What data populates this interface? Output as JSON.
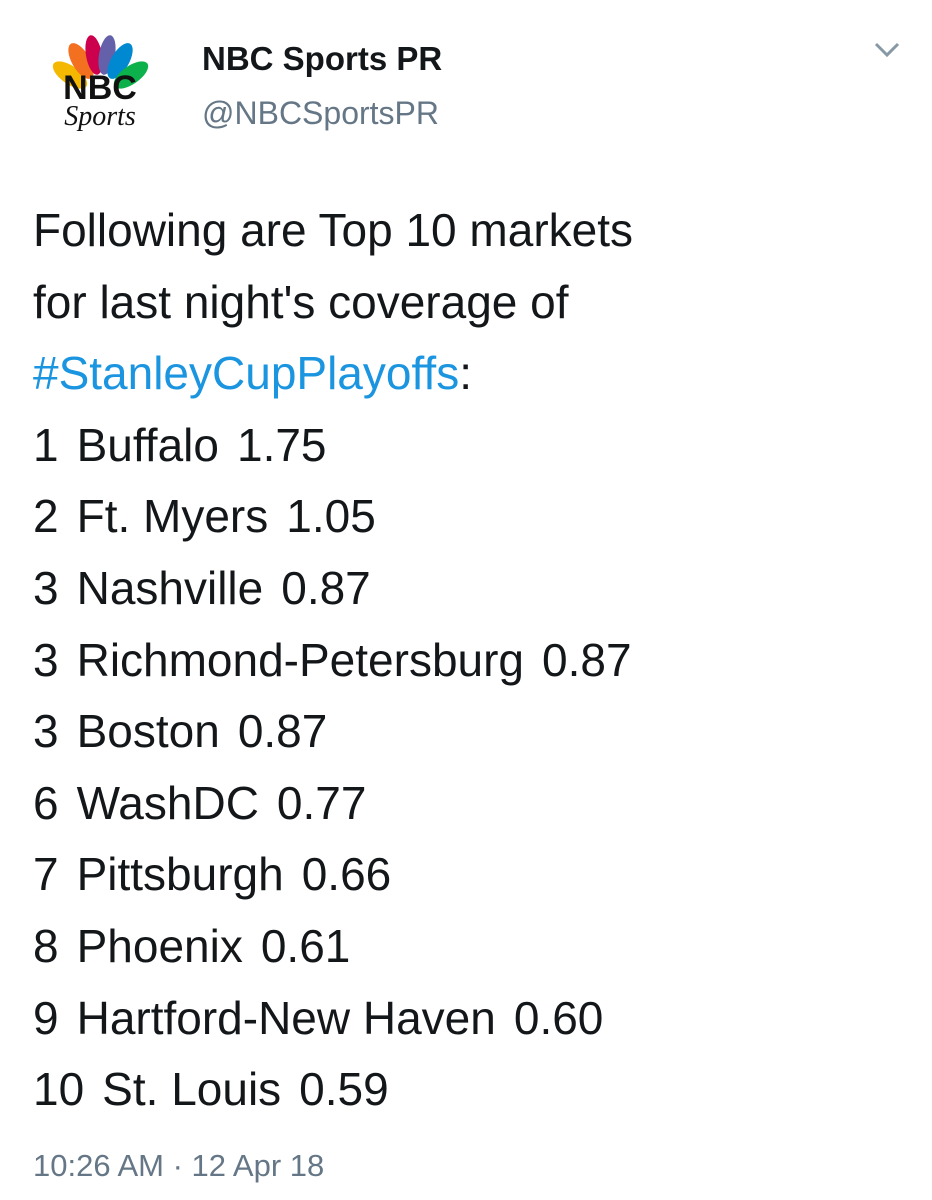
{
  "header": {
    "logo_text": "NBC",
    "logo_subtext": "Sports",
    "name": "NBC Sports PR",
    "handle": "@NBCSportsPR"
  },
  "tweet": {
    "intro_lines": [
      "Following are Top 10 markets",
      "for last night's coverage of"
    ],
    "hashtag": "#StanleyCupPlayoffs",
    "hashtag_suffix": ":",
    "rows": [
      {
        "rank": "1",
        "market": "Buffalo",
        "rating": "1.75"
      },
      {
        "rank": "2",
        "market": "Ft. Myers",
        "rating": "1.05"
      },
      {
        "rank": "3",
        "market": "Nashville",
        "rating": "0.87"
      },
      {
        "rank": "3",
        "market": "Richmond-Petersburg",
        "rating": "0.87"
      },
      {
        "rank": "3",
        "market": "Boston",
        "rating": "0.87"
      },
      {
        "rank": "6",
        "market": "WashDC",
        "rating": "0.77"
      },
      {
        "rank": "7",
        "market": "Pittsburgh",
        "rating": "0.66"
      },
      {
        "rank": "8",
        "market": "Phoenix",
        "rating": "0.61"
      },
      {
        "rank": "9",
        "market": "Hartford-New Haven",
        "rating": "0.60"
      },
      {
        "rank": "10",
        "market": "St. Louis",
        "rating": "0.59"
      }
    ],
    "timestamp": "10:26 AM · 12 Apr 18"
  }
}
